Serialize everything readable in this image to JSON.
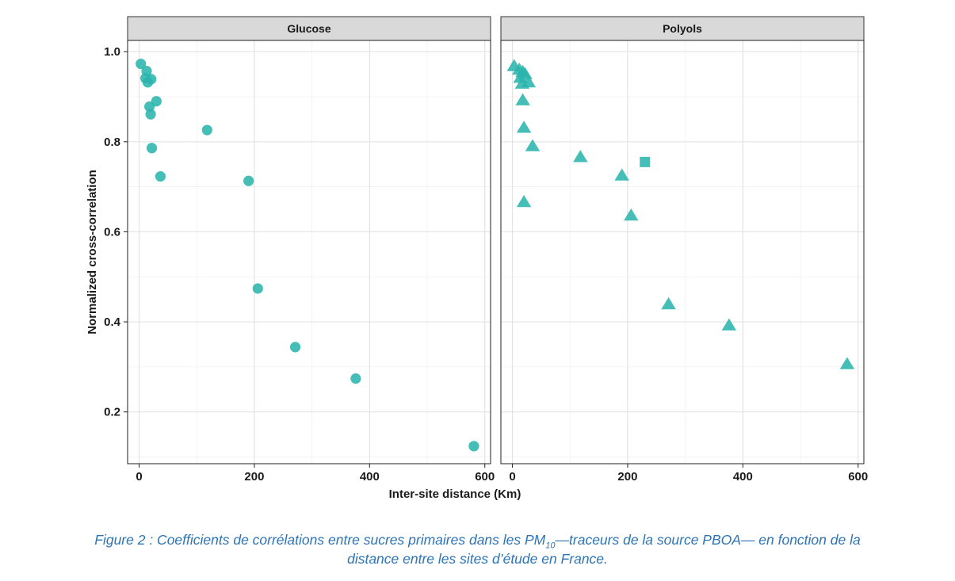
{
  "chart_data": {
    "type": "scatter",
    "x_axis_label": "Inter-site distance (Km)",
    "y_axis_label": "Normalized cross-correlation",
    "x_ticks": [
      "0",
      "200",
      "400",
      "600"
    ],
    "y_ticks": [
      "0.2",
      "0.4",
      "0.6",
      "0.8",
      "1.0"
    ],
    "xlim": [
      -20,
      610
    ],
    "ylim": [
      0.085,
      1.025
    ],
    "grid": true,
    "point_color": "#2bb5ad",
    "panels": [
      {
        "title": "Glucose",
        "points": [
          {
            "x": 3,
            "y": 0.973,
            "shape": "circle"
          },
          {
            "x": 13,
            "y": 0.957,
            "shape": "circle"
          },
          {
            "x": 11,
            "y": 0.941,
            "shape": "circle"
          },
          {
            "x": 15,
            "y": 0.932,
            "shape": "circle"
          },
          {
            "x": 21,
            "y": 0.939,
            "shape": "circle"
          },
          {
            "x": 18,
            "y": 0.878,
            "shape": "circle"
          },
          {
            "x": 20,
            "y": 0.861,
            "shape": "circle"
          },
          {
            "x": 30,
            "y": 0.89,
            "shape": "circle"
          },
          {
            "x": 22,
            "y": 0.786,
            "shape": "circle"
          },
          {
            "x": 37,
            "y": 0.723,
            "shape": "circle"
          },
          {
            "x": 118,
            "y": 0.826,
            "shape": "circle"
          },
          {
            "x": 190,
            "y": 0.713,
            "shape": "circle"
          },
          {
            "x": 206,
            "y": 0.474,
            "shape": "circle"
          },
          {
            "x": 271,
            "y": 0.344,
            "shape": "circle"
          },
          {
            "x": 376,
            "y": 0.274,
            "shape": "circle"
          },
          {
            "x": 581,
            "y": 0.124,
            "shape": "circle"
          }
        ]
      },
      {
        "title": "Polyols",
        "points": [
          {
            "x": 3,
            "y": 0.969,
            "shape": "triangle"
          },
          {
            "x": 12,
            "y": 0.961,
            "shape": "triangle"
          },
          {
            "x": 18,
            "y": 0.956,
            "shape": "triangle"
          },
          {
            "x": 22,
            "y": 0.951,
            "shape": "triangle"
          },
          {
            "x": 14,
            "y": 0.943,
            "shape": "triangle"
          },
          {
            "x": 28,
            "y": 0.933,
            "shape": "triangle"
          },
          {
            "x": 17,
            "y": 0.93,
            "shape": "triangle"
          },
          {
            "x": 18,
            "y": 0.893,
            "shape": "triangle"
          },
          {
            "x": 20,
            "y": 0.832,
            "shape": "triangle"
          },
          {
            "x": 35,
            "y": 0.791,
            "shape": "triangle"
          },
          {
            "x": 20,
            "y": 0.667,
            "shape": "triangle"
          },
          {
            "x": 118,
            "y": 0.767,
            "shape": "triangle"
          },
          {
            "x": 190,
            "y": 0.726,
            "shape": "triangle"
          },
          {
            "x": 230,
            "y": 0.755,
            "shape": "square"
          },
          {
            "x": 206,
            "y": 0.637,
            "shape": "triangle"
          },
          {
            "x": 271,
            "y": 0.44,
            "shape": "triangle"
          },
          {
            "x": 376,
            "y": 0.393,
            "shape": "triangle"
          },
          {
            "x": 581,
            "y": 0.307,
            "shape": "triangle"
          }
        ]
      }
    ]
  },
  "caption": {
    "prefix": "Figure 2 : Coefficients de corrélations entre sucres primaires dans les PM",
    "subscript": "10",
    "line1_suffix": "—traceurs de la source PBOA— en fonction de la",
    "line2": "distance entre les sites d’étude en France."
  }
}
